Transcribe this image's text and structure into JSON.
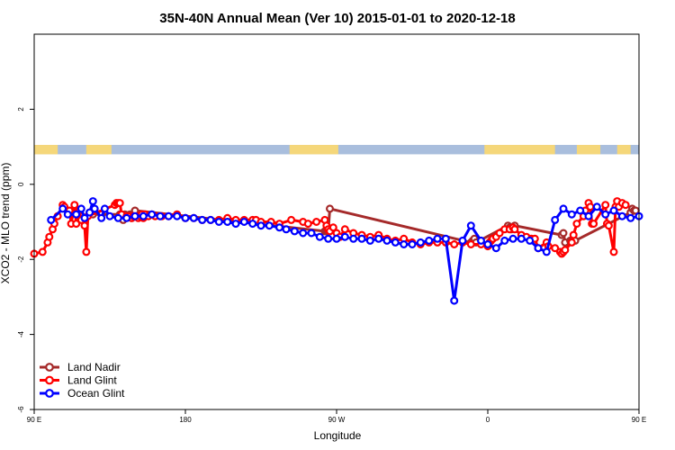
{
  "chart_data": {
    "type": "line",
    "title": "35N-40N Annual Mean (Ver 10)   2015-01-01 to 2020-12-18",
    "xlabel": "Longitude",
    "ylabel": "XCO2 - MLO trend (ppm)",
    "xlim": [
      90,
      450
    ],
    "ylim": [
      -6,
      4
    ],
    "x_ticks": [
      {
        "value": 90,
        "label": "90 E"
      },
      {
        "value": 180,
        "label": "180"
      },
      {
        "value": 270,
        "label": "90 W"
      },
      {
        "value": 360,
        "label": "0"
      },
      {
        "value": 450,
        "label": "90 E"
      }
    ],
    "y_ticks": [
      {
        "value": -6,
        "label": "-6"
      },
      {
        "value": -4,
        "label": "-4"
      },
      {
        "value": -2,
        "label": "-2"
      },
      {
        "value": 0,
        "label": "0"
      },
      {
        "value": 2,
        "label": "2"
      }
    ],
    "grid": false,
    "legend_position": "bottom-left",
    "land_mask": {
      "y_range": [
        0.8,
        1.05
      ],
      "land_color": "#f5d77a",
      "ocean_color": "#a9bedd",
      "land_segments": [
        [
          90,
          104
        ],
        [
          121,
          136
        ],
        [
          242,
          271
        ],
        [
          358,
          400
        ],
        [
          413,
          427
        ],
        [
          437,
          445
        ]
      ]
    },
    "series": [
      {
        "name": "Land Nadir",
        "color": "#a52a2a",
        "x": [
          123,
          125,
          130,
          141,
          142,
          143,
          144,
          147,
          148,
          149,
          150,
          263,
          264,
          265,
          266,
          350,
          351,
          352,
          353,
          372,
          373,
          374,
          376,
          404,
          405,
          406,
          409,
          410,
          411,
          412,
          445,
          446,
          447,
          448
        ],
        "y": [
          -0.75,
          -0.8,
          -0.8,
          -0.8,
          -0.9,
          -0.95,
          -0.8,
          -0.8,
          -0.9,
          -0.85,
          -0.7,
          -1.25,
          -1.25,
          -1.25,
          -0.65,
          -1.55,
          -1.5,
          -1.45,
          -1.55,
          -1.1,
          -1.15,
          -1.2,
          -1.1,
          -1.35,
          -1.3,
          -1.55,
          -1.5,
          -1.5,
          -1.5,
          -1.5,
          -0.75,
          -0.65,
          -0.7,
          -0.7
        ]
      },
      {
        "name": "Land Glint",
        "color": "#ff0000",
        "x": [
          90,
          95,
          98,
          99,
          101,
          102,
          104,
          107,
          108,
          111,
          112,
          114,
          115,
          117,
          118,
          120,
          121,
          122,
          138,
          139,
          140,
          141,
          142,
          145,
          147,
          148,
          149,
          150,
          151,
          152,
          153,
          154,
          155,
          156,
          158,
          160,
          162,
          165,
          166,
          170,
          175,
          180,
          185,
          190,
          195,
          200,
          205,
          210,
          215,
          220,
          222,
          225,
          231,
          236,
          243,
          250,
          253,
          258,
          263,
          264,
          265,
          266,
          268,
          270,
          272,
          275,
          280,
          285,
          290,
          295,
          300,
          305,
          310,
          315,
          320,
          325,
          330,
          335,
          340,
          345,
          350,
          356,
          360,
          361,
          362,
          363,
          365,
          367,
          370,
          373,
          375,
          376,
          380,
          383,
          386,
          388,
          390,
          395,
          396,
          400,
          403,
          404,
          405,
          406,
          410,
          411,
          413,
          417,
          418,
          420,
          421,
          422,
          423,
          430,
          431,
          432,
          435,
          436,
          437,
          438,
          440,
          442
        ],
        "y": [
          -1.85,
          -1.8,
          -1.55,
          -1.4,
          -1.2,
          -1.05,
          -0.85,
          -0.55,
          -0.6,
          -0.7,
          -1.05,
          -0.55,
          -1.05,
          -0.7,
          -0.95,
          -1.1,
          -1.8,
          -0.85,
          -0.55,
          -0.5,
          -0.5,
          -0.5,
          -0.8,
          -0.85,
          -0.85,
          -0.9,
          -0.85,
          -0.85,
          -0.85,
          -0.9,
          -0.85,
          -0.8,
          -0.9,
          -0.8,
          -0.85,
          -0.8,
          -0.85,
          -0.85,
          -0.85,
          -0.85,
          -0.8,
          -0.9,
          -0.9,
          -0.95,
          -0.95,
          -0.95,
          -0.9,
          -0.95,
          -0.95,
          -0.95,
          -0.95,
          -1.0,
          -1.0,
          -1.05,
          -0.95,
          -1.0,
          -1.05,
          -1.0,
          -0.95,
          -1.1,
          -1.2,
          -1.25,
          -1.15,
          -1.3,
          -1.4,
          -1.2,
          -1.3,
          -1.35,
          -1.4,
          -1.35,
          -1.45,
          -1.5,
          -1.45,
          -1.55,
          -1.6,
          -1.55,
          -1.55,
          -1.55,
          -1.6,
          -1.55,
          -1.6,
          -1.6,
          -1.65,
          -1.55,
          -1.5,
          -1.45,
          -1.4,
          -1.3,
          -1.2,
          -1.2,
          -1.15,
          -1.2,
          -1.35,
          -1.4,
          -1.45,
          -1.45,
          -1.7,
          -1.55,
          -1.65,
          -1.7,
          -1.8,
          -1.85,
          -1.8,
          -1.75,
          -1.55,
          -1.35,
          -1.05,
          -0.85,
          -0.7,
          -0.5,
          -0.6,
          -1.05,
          -1.05,
          -0.55,
          -1.05,
          -1.1,
          -1.8,
          -0.6,
          -0.45,
          -0.6,
          -0.5,
          -0.55
        ]
      },
      {
        "name": "Ocean Glint",
        "color": "#0000ff",
        "x": [
          100,
          107,
          110,
          115,
          118,
          120,
          123,
          125,
          126,
          130,
          132,
          135,
          140,
          145,
          150,
          155,
          160,
          165,
          170,
          175,
          180,
          185,
          190,
          195,
          200,
          205,
          210,
          215,
          220,
          225,
          230,
          236,
          240,
          245,
          250,
          255,
          260,
          265,
          270,
          275,
          280,
          285,
          290,
          295,
          300,
          305,
          310,
          315,
          320,
          325,
          330,
          335,
          340,
          345,
          350,
          356,
          360,
          365,
          370,
          375,
          380,
          385,
          390,
          395,
          400,
          405,
          410,
          415,
          420,
          425,
          430,
          435,
          440,
          445,
          450
        ],
        "y": [
          -0.95,
          -0.65,
          -0.8,
          -0.8,
          -0.65,
          -0.9,
          -0.75,
          -0.45,
          -0.65,
          -0.9,
          -0.65,
          -0.85,
          -0.9,
          -0.9,
          -0.85,
          -0.85,
          -0.8,
          -0.85,
          -0.85,
          -0.85,
          -0.9,
          -0.9,
          -0.95,
          -0.95,
          -1.0,
          -1.0,
          -1.05,
          -1.0,
          -1.05,
          -1.1,
          -1.1,
          -1.15,
          -1.2,
          -1.25,
          -1.3,
          -1.3,
          -1.4,
          -1.45,
          -1.45,
          -1.4,
          -1.45,
          -1.45,
          -1.5,
          -1.45,
          -1.5,
          -1.55,
          -1.6,
          -1.6,
          -1.55,
          -1.5,
          -1.45,
          -1.45,
          -3.1,
          -1.5,
          -1.1,
          -1.5,
          -1.6,
          -1.7,
          -1.5,
          -1.45,
          -1.45,
          -1.5,
          -1.7,
          -1.8,
          -0.95,
          -0.65,
          -0.8,
          -0.7,
          -0.85,
          -0.6,
          -0.8,
          -0.7,
          -0.85,
          -0.9,
          -0.85
        ]
      }
    ]
  }
}
